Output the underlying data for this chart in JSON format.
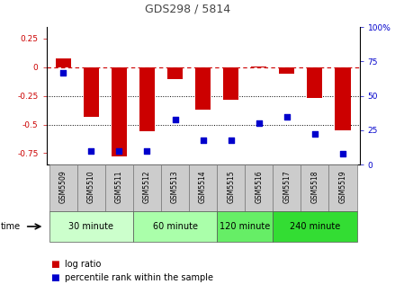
{
  "title": "GDS298 / 5814",
  "samples": [
    "GSM5509",
    "GSM5510",
    "GSM5511",
    "GSM5512",
    "GSM5513",
    "GSM5514",
    "GSM5515",
    "GSM5516",
    "GSM5517",
    "GSM5518",
    "GSM5519"
  ],
  "log_ratio": [
    0.08,
    -0.43,
    -0.78,
    -0.56,
    -0.1,
    -0.37,
    -0.28,
    0.01,
    -0.06,
    -0.27,
    -0.55
  ],
  "percentile_rank": [
    67,
    10,
    10,
    10,
    33,
    18,
    18,
    30,
    35,
    22,
    8
  ],
  "groups": [
    {
      "label": "30 minute",
      "start": 0,
      "end": 3,
      "color": "#ccffcc"
    },
    {
      "label": "60 minute",
      "start": 3,
      "end": 6,
      "color": "#aaffaa"
    },
    {
      "label": "120 minute",
      "start": 6,
      "end": 8,
      "color": "#66ee66"
    },
    {
      "label": "240 minute",
      "start": 8,
      "end": 11,
      "color": "#33dd33"
    }
  ],
  "ylim_left": [
    -0.85,
    0.35
  ],
  "ylim_right": [
    0,
    100
  ],
  "bar_color": "#cc0000",
  "dot_color": "#0000cc",
  "hline_y": 0,
  "dotted_lines": [
    -0.25,
    -0.5
  ],
  "title_color": "#444444",
  "left_tick_color": "#cc0000",
  "right_tick_color": "#0000cc",
  "background_color": "#ffffff",
  "sample_bg": "#cccccc",
  "yticks_left": [
    0.25,
    0.0,
    -0.25,
    -0.5,
    -0.75
  ],
  "yticks_right": [
    0,
    25,
    50,
    75,
    100
  ]
}
